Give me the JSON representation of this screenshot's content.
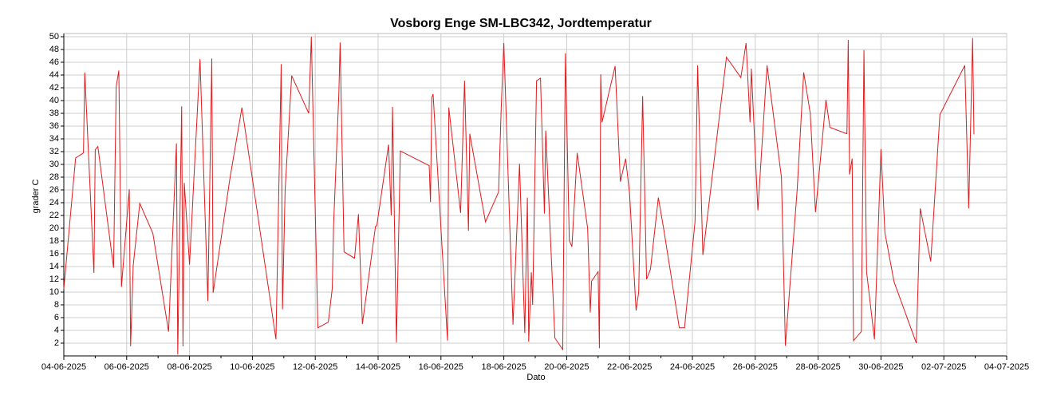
{
  "chart_data": {
    "type": "line",
    "title": "Vosborg Enge SM-LBC342, Jordtemperatur",
    "x_label": "Dato",
    "y_label": "grader C",
    "xlim": [
      "2025-06-04T00:00",
      "2025-07-04T00:00"
    ],
    "xticks": [
      {
        "value": "2025-06-04T00:00",
        "label": "04-06-2025"
      },
      {
        "value": "2025-06-06T00:00",
        "label": "06-06-2025"
      },
      {
        "value": "2025-06-08T00:00",
        "label": "08-06-2025"
      },
      {
        "value": "2025-06-10T00:00",
        "label": "10-06-2025"
      },
      {
        "value": "2025-06-12T00:00",
        "label": "12-06-2025"
      },
      {
        "value": "2025-06-14T00:00",
        "label": "14-06-2025"
      },
      {
        "value": "2025-06-16T00:00",
        "label": "16-06-2025"
      },
      {
        "value": "2025-06-18T00:00",
        "label": "18-06-2025"
      },
      {
        "value": "2025-06-20T00:00",
        "label": "20-06-2025"
      },
      {
        "value": "2025-06-22T00:00",
        "label": "22-06-2025"
      },
      {
        "value": "2025-06-24T00:00",
        "label": "24-06-2025"
      },
      {
        "value": "2025-06-26T00:00",
        "label": "26-06-2025"
      },
      {
        "value": "2025-06-28T00:00",
        "label": "28-06-2025"
      },
      {
        "value": "2025-06-30T00:00",
        "label": "30-06-2025"
      },
      {
        "value": "2025-07-02T00:00",
        "label": "02-07-2025"
      },
      {
        "value": "2025-07-04T00:00",
        "label": "04-07-2025"
      }
    ],
    "ylim": [
      0,
      50
    ],
    "yticks": [
      2,
      4,
      6,
      8,
      10,
      12,
      14,
      16,
      18,
      20,
      22,
      24,
      26,
      28,
      30,
      32,
      34,
      36,
      38,
      40,
      42,
      44,
      46,
      48,
      50
    ],
    "grid": true,
    "x": [
      "2025-06-04T00:00",
      "2025-06-04T09:00",
      "2025-06-04T15:00",
      "2025-06-04T16:00",
      "2025-06-04T19:00",
      "2025-06-04T23:00",
      "2025-06-05T00:00",
      "2025-06-05T02:00",
      "2025-06-05T14:00",
      "2025-06-05T16:00",
      "2025-06-05T18:00",
      "2025-06-05T20:00",
      "2025-06-06T02:00",
      "2025-06-06T03:00",
      "2025-06-06T05:00",
      "2025-06-06T10:00",
      "2025-06-06T20:00",
      "2025-06-07T08:00",
      "2025-06-07T14:00",
      "2025-06-07T15:00",
      "2025-06-07T18:00",
      "2025-06-07T19:00",
      "2025-06-07T20:00",
      "2025-06-08T00:00",
      "2025-06-08T08:00",
      "2025-06-08T14:00",
      "2025-06-08T17:00",
      "2025-06-08T18:00",
      "2025-06-09T07:00",
      "2025-06-09T16:00",
      "2025-06-10T18:00",
      "2025-06-10T22:00",
      "2025-06-10T23:00",
      "2025-06-11T01:00",
      "2025-06-11T06:00",
      "2025-06-11T19:00",
      "2025-06-11T21:00",
      "2025-06-12T02:00",
      "2025-06-12T10:00",
      "2025-06-12T13:00",
      "2025-06-12T14:00",
      "2025-06-12T18:00",
      "2025-06-12T19:00",
      "2025-06-12T22:00",
      "2025-06-13T06:00",
      "2025-06-13T09:00",
      "2025-06-13T12:00",
      "2025-06-13T22:00",
      "2025-06-13T23:00",
      "2025-06-14T08:00",
      "2025-06-14T10:00",
      "2025-06-14T11:00",
      "2025-06-14T14:00",
      "2025-06-14T17:00",
      "2025-06-15T15:00",
      "2025-06-15T16:00",
      "2025-06-15T17:00",
      "2025-06-15T18:00",
      "2025-06-16T05:00",
      "2025-06-16T06:00",
      "2025-06-16T15:00",
      "2025-06-16T18:00",
      "2025-06-16T21:00",
      "2025-06-16T22:00",
      "2025-06-17T10:00",
      "2025-06-17T20:00",
      "2025-06-17T22:00",
      "2025-06-18T00:00",
      "2025-06-18T07:00",
      "2025-06-18T12:00",
      "2025-06-18T16:00",
      "2025-06-18T18:00",
      "2025-06-18T19:00",
      "2025-06-18T21:00",
      "2025-06-18T22:00",
      "2025-06-19T01:00",
      "2025-06-19T04:00",
      "2025-06-19T07:00",
      "2025-06-19T08:00",
      "2025-06-19T15:00",
      "2025-06-19T21:00",
      "2025-06-19T23:00",
      "2025-06-20T02:00",
      "2025-06-20T04:00",
      "2025-06-20T08:00",
      "2025-06-20T16:00",
      "2025-06-20T18:00",
      "2025-06-20T19:00",
      "2025-06-21T00:00",
      "2025-06-21T01:00",
      "2025-06-21T02:00",
      "2025-06-21T03:00",
      "2025-06-21T13:00",
      "2025-06-21T17:00",
      "2025-06-21T21:00",
      "2025-06-22T00:00",
      "2025-06-22T05:00",
      "2025-06-22T07:00",
      "2025-06-22T10:00",
      "2025-06-22T13:00",
      "2025-06-22T16:00",
      "2025-06-22T22:00",
      "2025-06-23T02:00",
      "2025-06-23T14:00",
      "2025-06-23T18:00",
      "2025-06-24T02:00",
      "2025-06-24T04:00",
      "2025-06-24T08:00",
      "2025-06-25T02:00",
      "2025-06-25T13:00",
      "2025-06-25T17:00",
      "2025-06-25T20:00",
      "2025-06-25T21:00",
      "2025-06-26T02:00",
      "2025-06-26T09:00",
      "2025-06-26T20:00",
      "2025-06-26T23:00",
      "2025-06-27T08:00",
      "2025-06-27T13:00",
      "2025-06-27T18:00",
      "2025-06-27T22:00",
      "2025-06-28T06:00",
      "2025-06-28T09:00",
      "2025-06-28T22:00",
      "2025-06-28T23:00",
      "2025-06-29T00:00",
      "2025-06-29T02:00",
      "2025-06-29T03:00",
      "2025-06-29T09:00",
      "2025-06-29T11:00",
      "2025-06-29T13:00",
      "2025-06-29T19:00",
      "2025-06-30T00:00",
      "2025-06-30T03:00",
      "2025-06-30T10:00",
      "2025-07-01T03:00",
      "2025-07-01T06:00",
      "2025-07-01T14:00",
      "2025-07-01T21:00",
      "2025-07-02T16:00",
      "2025-07-02T19:00",
      "2025-07-02T22:00",
      "2025-07-02T23:00"
    ],
    "series": [
      {
        "name": "Jordtemperatur",
        "color": "#e31a1c",
        "values": [
          10.5,
          31,
          31.8,
          44.4,
          31,
          13,
          32.3,
          32.8,
          13.8,
          42.2,
          44.7,
          10.8,
          26.1,
          1.5,
          14.2,
          23.9,
          19.2,
          3.8,
          33.3,
          0.2,
          39.1,
          1.5,
          27.1,
          14.3,
          46.5,
          8.6,
          46.6,
          9.9,
          28,
          38.9,
          2.6,
          45.7,
          7.3,
          26,
          43.9,
          38,
          50,
          4.4,
          5.3,
          10.6,
          20.5,
          41,
          49.1,
          16.3,
          15.3,
          22.2,
          5,
          20.3,
          20.4,
          33.1,
          22,
          39,
          2.1,
          32.1,
          29.8,
          24.1,
          40.5,
          41,
          2.4,
          38.9,
          22.4,
          43.1,
          19.6,
          34.8,
          21,
          25.7,
          38.8,
          49,
          4.9,
          30.1,
          3.6,
          24.8,
          2.2,
          13.1,
          8,
          43.1,
          43.5,
          22.3,
          35.3,
          2.8,
          1,
          47.4,
          18.1,
          17.1,
          31.8,
          20,
          6.8,
          11.7,
          13.2,
          1.2,
          44.1,
          36.6,
          45.4,
          27.3,
          30.9,
          25.5,
          7.1,
          10,
          40.7,
          12,
          13.6,
          24.8,
          20,
          4.4,
          4.4,
          21,
          45.5,
          15.8,
          46.8,
          43.6,
          49,
          36.6,
          45,
          22.8,
          45.5,
          28,
          1.6,
          26,
          44.4,
          38,
          22.5,
          40.1,
          35.8,
          34.8,
          49.5,
          28.4,
          30.9,
          2.4,
          3.8,
          47.9,
          13.2,
          2.6,
          32.4,
          19.3,
          11.6,
          2,
          23.1,
          14.8,
          37.8,
          45.5,
          23.1,
          49.8,
          34.7
        ]
      }
    ]
  }
}
